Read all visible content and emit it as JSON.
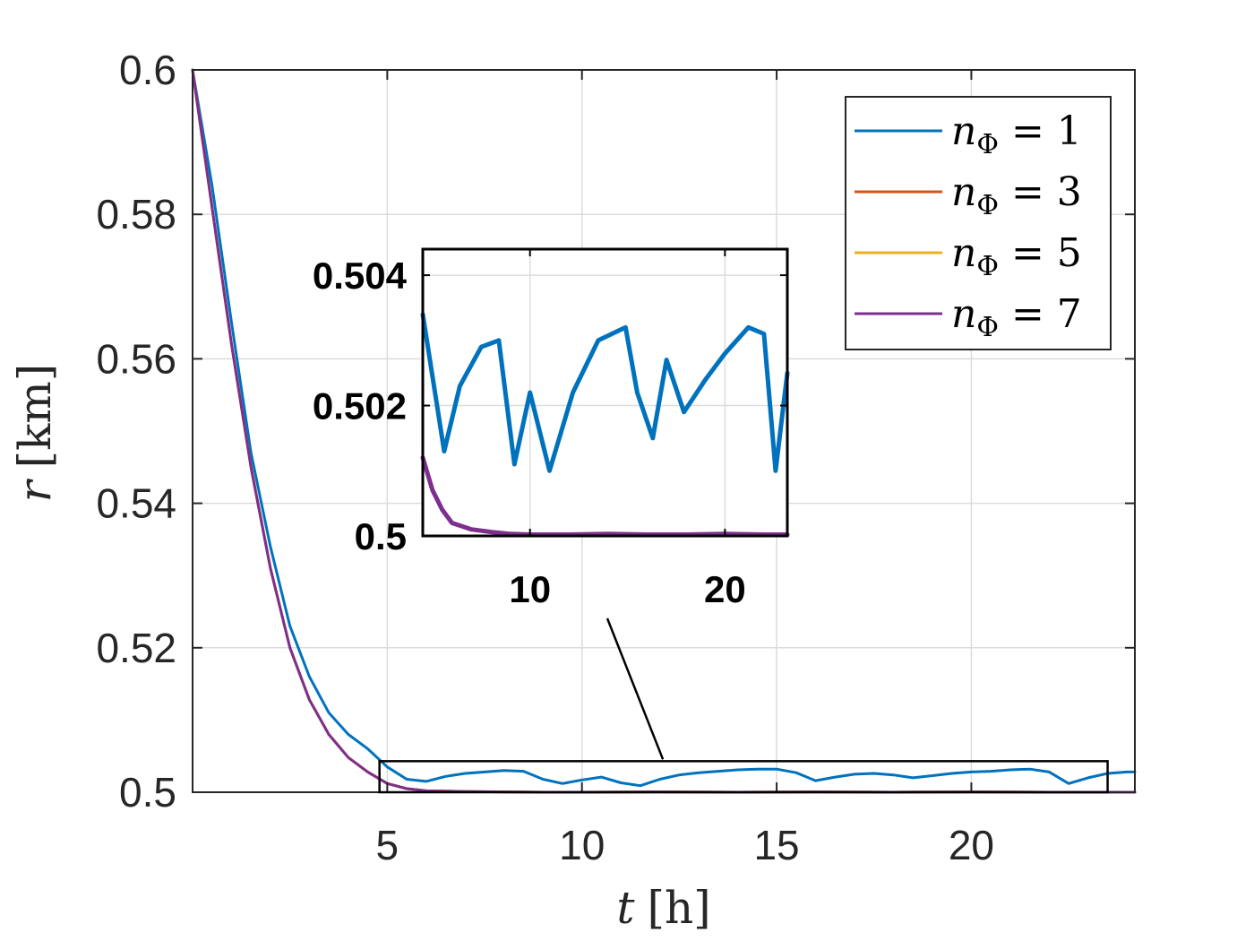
{
  "chart_data": {
    "type": "line",
    "title": "",
    "xlabel": "t [h]",
    "ylabel": "r [km]",
    "xlabel_parts": {
      "var": "t",
      "unit": "[h]"
    },
    "ylabel_parts": {
      "var": "r",
      "unit": "[km]"
    },
    "xlim": [
      0,
      24.2
    ],
    "ylim": [
      0.5,
      0.6
    ],
    "xticks": [
      5,
      10,
      15,
      20
    ],
    "xtick_labels": [
      "5",
      "10",
      "15",
      "20"
    ],
    "yticks": [
      0.5,
      0.52,
      0.54,
      0.56,
      0.58,
      0.6
    ],
    "ytick_labels": [
      "0.5",
      "0.52",
      "0.54",
      "0.56",
      "0.58",
      "0.6"
    ],
    "grid": true,
    "legend_position": "top-right",
    "series": [
      {
        "name": "n_Φ = 1",
        "legend_label": "nΦ = 1",
        "color": "#0072BD",
        "x": [
          0,
          0.5,
          1,
          1.5,
          2,
          2.5,
          3,
          3.5,
          4,
          4.5,
          5,
          5.5,
          6,
          6.5,
          7,
          7.5,
          8,
          8.5,
          9,
          9.5,
          10,
          10.5,
          11,
          11.5,
          12,
          12.5,
          13,
          13.5,
          14,
          14.5,
          15,
          15.5,
          16,
          16.5,
          17,
          17.5,
          18,
          18.5,
          19,
          19.5,
          20,
          20.5,
          21,
          21.5,
          22,
          22.5,
          23,
          23.5,
          24,
          24.2
        ],
        "y": [
          0.6,
          0.584,
          0.565,
          0.547,
          0.534,
          0.523,
          0.516,
          0.511,
          0.508,
          0.506,
          0.5035,
          0.5018,
          0.5015,
          0.5022,
          0.5026,
          0.5028,
          0.503,
          0.5029,
          0.5018,
          0.5012,
          0.5017,
          0.5021,
          0.5013,
          0.5009,
          0.5018,
          0.5024,
          0.5027,
          0.5029,
          0.5031,
          0.5032,
          0.5032,
          0.5027,
          0.5016,
          0.5021,
          0.5025,
          0.5026,
          0.5024,
          0.502,
          0.5023,
          0.5026,
          0.5028,
          0.5029,
          0.5031,
          0.5032,
          0.5028,
          0.5012,
          0.502,
          0.5026,
          0.5028,
          0.5028
        ]
      },
      {
        "name": "n_Φ = 3",
        "legend_label": "nΦ = 3",
        "color": "#D95319",
        "x": [
          0,
          0.5,
          1,
          1.5,
          2,
          2.5,
          3,
          3.5,
          4,
          4.5,
          5,
          5.5,
          6,
          7,
          8,
          9,
          10,
          12,
          14,
          16,
          18,
          20,
          22,
          24.2
        ],
        "y": [
          0.6,
          0.581,
          0.562,
          0.545,
          0.531,
          0.52,
          0.5128,
          0.508,
          0.5048,
          0.5028,
          0.5012,
          0.5005,
          0.5002,
          0.5001,
          0.50005,
          0.5,
          0.5,
          0.50005,
          0.5,
          0.50005,
          0.5,
          0.50005,
          0.5,
          0.5
        ]
      },
      {
        "name": "n_Φ = 5",
        "legend_label": "nΦ = 5",
        "color": "#EDB120",
        "x": [
          0,
          0.5,
          1,
          1.5,
          2,
          2.5,
          3,
          3.5,
          4,
          4.5,
          5,
          5.5,
          6,
          7,
          8,
          9,
          10,
          12,
          14,
          16,
          18,
          20,
          22,
          24.2
        ],
        "y": [
          0.6,
          0.581,
          0.562,
          0.545,
          0.531,
          0.52,
          0.5128,
          0.508,
          0.5048,
          0.5028,
          0.5012,
          0.5005,
          0.5002,
          0.5001,
          0.50005,
          0.5,
          0.5,
          0.50005,
          0.5,
          0.50005,
          0.5,
          0.50005,
          0.5,
          0.5
        ]
      },
      {
        "name": "n_Φ = 7",
        "legend_label": "nΦ = 7",
        "color": "#7E2F8E",
        "x": [
          0,
          0.5,
          1,
          1.5,
          2,
          2.5,
          3,
          3.5,
          4,
          4.5,
          5,
          5.5,
          6,
          7,
          8,
          9,
          10,
          12,
          14,
          16,
          18,
          20,
          22,
          24.2
        ],
        "y": [
          0.6,
          0.581,
          0.562,
          0.545,
          0.531,
          0.52,
          0.5128,
          0.508,
          0.5048,
          0.5028,
          0.5012,
          0.5005,
          0.5002,
          0.5001,
          0.50005,
          0.5,
          0.5,
          0.50005,
          0.5,
          0.50005,
          0.5,
          0.50005,
          0.5,
          0.5
        ]
      }
    ],
    "zoom_region": {
      "x": [
        4.8,
        23.5
      ],
      "y": [
        0.5,
        0.5043
      ]
    },
    "inset": {
      "xlim": [
        4.5,
        23.2
      ],
      "ylim": [
        0.5,
        0.5044
      ],
      "xticks": [
        10,
        20
      ],
      "xtick_labels": [
        "10",
        "20"
      ],
      "yticks": [
        0.5,
        0.502,
        0.504
      ],
      "ytick_labels": [
        "0.5",
        "0.502",
        "0.504"
      ],
      "grid": true,
      "series": [
        {
          "name": "n_Φ = 1",
          "color": "#0072BD",
          "x": [
            4.5,
            5.6,
            6.4,
            7.5,
            8.4,
            9.2,
            10.0,
            11.0,
            12.2,
            13.5,
            14.9,
            15.5,
            16.3,
            17.0,
            17.9,
            19.0,
            20.0,
            21.2,
            22.0,
            22.6,
            23.2
          ],
          "y": [
            0.5034,
            0.5013,
            0.5023,
            0.5029,
            0.503,
            0.5011,
            0.5022,
            0.501,
            0.5022,
            0.503,
            0.5032,
            0.5022,
            0.5015,
            0.5027,
            0.5019,
            0.5024,
            0.5028,
            0.5032,
            0.5031,
            0.501,
            0.5025
          ]
        },
        {
          "name": "n_Φ = 3",
          "color": "#D95319",
          "x": [
            4.5,
            5.0,
            5.5,
            6.0,
            7.0,
            8.0,
            9.0,
            10.0,
            12.0,
            14.0,
            16.0,
            18.0,
            20.0,
            22.0,
            23.2
          ],
          "y": [
            0.5012,
            0.5007,
            0.5004,
            0.5002,
            0.5001,
            0.50006,
            0.50003,
            0.50002,
            0.50002,
            0.50003,
            0.50002,
            0.50002,
            0.50003,
            0.50002,
            0.50002
          ]
        },
        {
          "name": "n_Φ = 5",
          "color": "#EDB120",
          "x": [
            4.5,
            5.0,
            5.5,
            6.0,
            7.0,
            8.0,
            9.0,
            10.0,
            12.0,
            14.0,
            16.0,
            18.0,
            20.0,
            22.0,
            23.2
          ],
          "y": [
            0.5012,
            0.5007,
            0.5004,
            0.5002,
            0.5001,
            0.50006,
            0.50003,
            0.50002,
            0.50002,
            0.50003,
            0.50002,
            0.50002,
            0.50003,
            0.50002,
            0.50002
          ]
        },
        {
          "name": "n_Φ = 7",
          "color": "#7E2F8E",
          "x": [
            4.5,
            5.0,
            5.5,
            6.0,
            7.0,
            8.0,
            9.0,
            10.0,
            12.0,
            14.0,
            16.0,
            18.0,
            20.0,
            22.0,
            23.2
          ],
          "y": [
            0.5012,
            0.5007,
            0.5004,
            0.5002,
            0.5001,
            0.50006,
            0.50003,
            0.50002,
            0.50002,
            0.50003,
            0.50002,
            0.50002,
            0.50003,
            0.50002,
            0.50002
          ]
        }
      ]
    }
  }
}
